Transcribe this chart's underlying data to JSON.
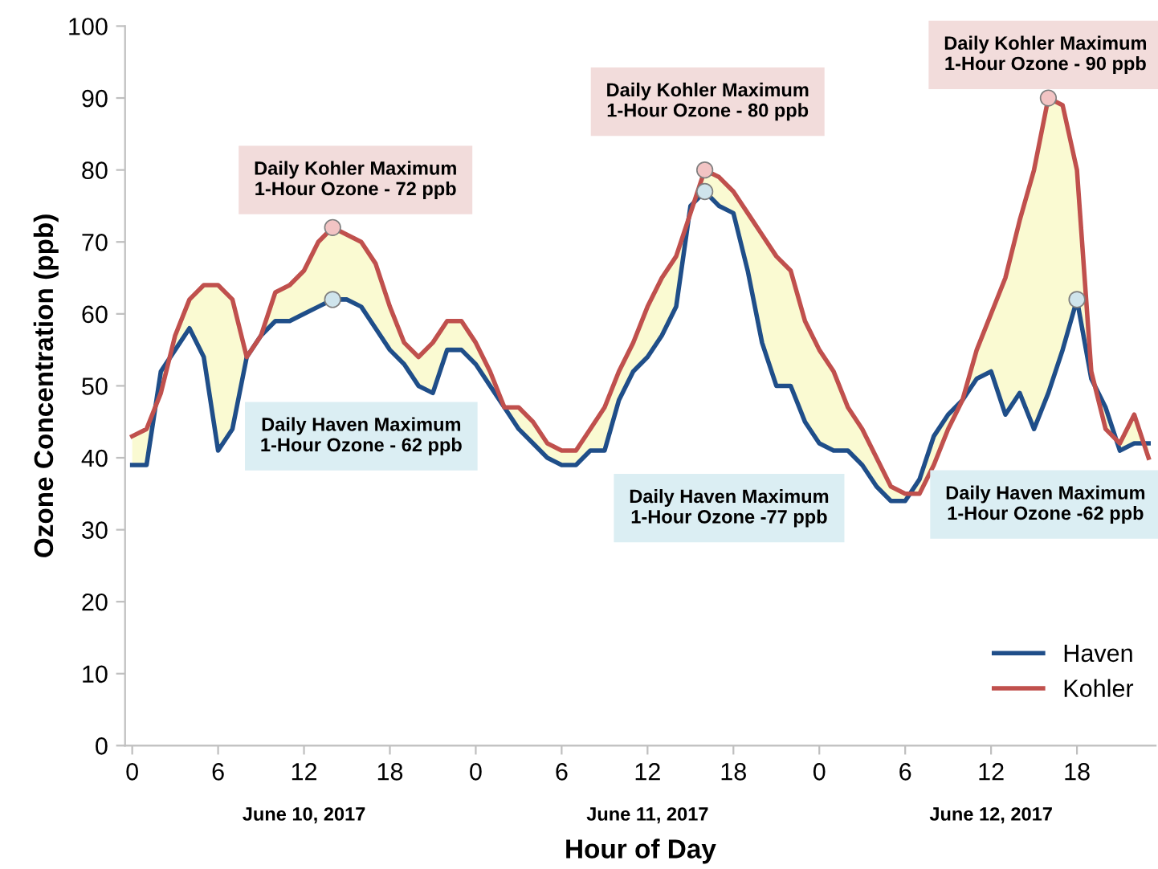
{
  "chart_data": {
    "type": "line",
    "xlabel": "Hour of Day",
    "ylabel": "Ozone Concentration (ppb)",
    "x": [
      "2017-06-10T00:00",
      "2017-06-10T01:00",
      "2017-06-10T02:00",
      "2017-06-10T03:00",
      "2017-06-10T04:00",
      "2017-06-10T05:00",
      "2017-06-10T06:00",
      "2017-06-10T07:00",
      "2017-06-10T08:00",
      "2017-06-10T09:00",
      "2017-06-10T10:00",
      "2017-06-10T11:00",
      "2017-06-10T12:00",
      "2017-06-10T13:00",
      "2017-06-10T14:00",
      "2017-06-10T15:00",
      "2017-06-10T16:00",
      "2017-06-10T17:00",
      "2017-06-10T18:00",
      "2017-06-10T19:00",
      "2017-06-10T20:00",
      "2017-06-10T21:00",
      "2017-06-10T22:00",
      "2017-06-10T23:00",
      "2017-06-11T00:00",
      "2017-06-11T01:00",
      "2017-06-11T02:00",
      "2017-06-11T03:00",
      "2017-06-11T04:00",
      "2017-06-11T05:00",
      "2017-06-11T06:00",
      "2017-06-11T07:00",
      "2017-06-11T08:00",
      "2017-06-11T09:00",
      "2017-06-11T10:00",
      "2017-06-11T11:00",
      "2017-06-11T12:00",
      "2017-06-11T13:00",
      "2017-06-11T14:00",
      "2017-06-11T15:00",
      "2017-06-11T16:00",
      "2017-06-11T17:00",
      "2017-06-11T18:00",
      "2017-06-11T19:00",
      "2017-06-11T20:00",
      "2017-06-11T21:00",
      "2017-06-11T22:00",
      "2017-06-11T23:00",
      "2017-06-12T00:00",
      "2017-06-12T01:00",
      "2017-06-12T02:00",
      "2017-06-12T03:00",
      "2017-06-12T04:00",
      "2017-06-12T05:00",
      "2017-06-12T06:00",
      "2017-06-12T07:00",
      "2017-06-12T08:00",
      "2017-06-12T09:00",
      "2017-06-12T10:00",
      "2017-06-12T11:00",
      "2017-06-12T12:00",
      "2017-06-12T13:00",
      "2017-06-12T14:00",
      "2017-06-12T15:00",
      "2017-06-12T16:00",
      "2017-06-12T17:00",
      "2017-06-12T18:00",
      "2017-06-12T19:00",
      "2017-06-12T20:00",
      "2017-06-12T21:00",
      "2017-06-12T22:00",
      "2017-06-12T23:00"
    ],
    "series": [
      {
        "name": "Haven",
        "color": "#1f4e89",
        "values": [
          39,
          39,
          52,
          55,
          58,
          54,
          41,
          44,
          54,
          57,
          59,
          59,
          60,
          61,
          62,
          62,
          61,
          58,
          55,
          53,
          50,
          49,
          55,
          55,
          53,
          50,
          47,
          44,
          42,
          40,
          39,
          39,
          41,
          41,
          48,
          52,
          54,
          57,
          61,
          75,
          77,
          75,
          74,
          66,
          56,
          50,
          50,
          45,
          42,
          41,
          41,
          39,
          36,
          34,
          34,
          37,
          43,
          46,
          48,
          51,
          52,
          46,
          49,
          44,
          49,
          55,
          62,
          51,
          47,
          41,
          42,
          42
        ]
      },
      {
        "name": "Kohler",
        "color": "#c0504d",
        "values": [
          43,
          44,
          49,
          57,
          62,
          64,
          64,
          62,
          54,
          57,
          63,
          64,
          66,
          70,
          72,
          71,
          70,
          67,
          61,
          56,
          54,
          56,
          59,
          59,
          56,
          52,
          47,
          47,
          45,
          42,
          41,
          41,
          44,
          47,
          52,
          56,
          61,
          65,
          68,
          74,
          80,
          79,
          77,
          74,
          71,
          68,
          66,
          59,
          55,
          52,
          47,
          44,
          40,
          36,
          35,
          35,
          39,
          44,
          48,
          55,
          60,
          65,
          73,
          80,
          90,
          89,
          80,
          52,
          44,
          42,
          46,
          40
        ],
        "lower": [
          39,
          39,
          52,
          55,
          58,
          54,
          41,
          44,
          54,
          57,
          59,
          59,
          60,
          61,
          62,
          62,
          61,
          58,
          55,
          53,
          50,
          49,
          55,
          55,
          53,
          50,
          47,
          44,
          42,
          40,
          39,
          39,
          41,
          41,
          48,
          52,
          54,
          57,
          61,
          75,
          77,
          75,
          74,
          66,
          56,
          50,
          50,
          45,
          42,
          41,
          41,
          39,
          36,
          34,
          34,
          37,
          43,
          46,
          48,
          51,
          52,
          46,
          49,
          44,
          49,
          55,
          62,
          51,
          47,
          41,
          42,
          42
        ],
        "upper": [
          43,
          44,
          49,
          57,
          62,
          64,
          64,
          62,
          54,
          57,
          63,
          64,
          66,
          70,
          72,
          71,
          70,
          67,
          61,
          56,
          54,
          56,
          59,
          59,
          56,
          52,
          47,
          47,
          45,
          42,
          41,
          41,
          44,
          47,
          52,
          56,
          61,
          65,
          68,
          74,
          80,
          79,
          77,
          74,
          71,
          68,
          66,
          59,
          55,
          52,
          47,
          44,
          40,
          36,
          35,
          35,
          39,
          44,
          48,
          55,
          60,
          65,
          73,
          80,
          90,
          89,
          80,
          52,
          44,
          42,
          46,
          40
        ]
      },
      {
        "type": "scatter",
        "x": [
          "2017-06-10T14:00",
          "2017-06-10T14:00",
          "2017-06-11T16:00",
          "2017-06-11T16:00",
          "2017-06-12T16:00",
          "2017-06-12T18:00"
        ],
        "values": [
          72,
          62,
          80,
          77,
          90,
          62
        ],
        "colors": [
          "#f2c4c4",
          "#cfe4ec",
          "#f2c4c4",
          "#cfe4ec",
          "#f2c4c4",
          "#cfe4ec"
        ],
        "marker": "circle"
      }
    ],
    "xlim": [
      "2017-06-09T23:30",
      "2017-06-12T23:30"
    ],
    "xticks": [
      {
        "value": "2017-06-10T00:00",
        "label": "0"
      },
      {
        "value": "2017-06-10T06:00",
        "label": "6"
      },
      {
        "value": "2017-06-10T12:00",
        "label": "12"
      },
      {
        "value": "2017-06-10T18:00",
        "label": "18"
      },
      {
        "value": "2017-06-11T00:00",
        "label": "0"
      },
      {
        "value": "2017-06-11T06:00",
        "label": "6"
      },
      {
        "value": "2017-06-11T12:00",
        "label": "12"
      },
      {
        "value": "2017-06-11T18:00",
        "label": "18"
      },
      {
        "value": "2017-06-12T00:00",
        "label": "0"
      },
      {
        "value": "2017-06-12T06:00",
        "label": "6"
      },
      {
        "value": "2017-06-12T12:00",
        "label": "12"
      },
      {
        "value": "2017-06-12T18:00",
        "label": "18"
      }
    ],
    "ylim": [
      0,
      100
    ],
    "yticks": [
      0,
      10,
      20,
      30,
      40,
      50,
      60,
      70,
      80,
      90,
      100
    ],
    "grid": false,
    "legend": "bottom right",
    "marker": "none",
    "line_style": "solid",
    "annotations": [
      "Daily Kohler Maximum\n1-Hour Ozone - 72 ppb",
      "Daily Haven Maximum\n1-Hour Ozone - 62 ppb",
      "Daily Kohler Maximum\n1-Hour Ozone - 80 ppb",
      "Daily Haven Maximum\n1-Hour Ozone -77 ppb",
      "Daily Kohler Maximum\n1-Hour Ozone - 90 ppb",
      "Daily Haven Maximum\n1-Hour Ozone -62 ppb",
      "June 10, 2017",
      "June 11, 2017",
      "June 12, 2017"
    ]
  }
}
